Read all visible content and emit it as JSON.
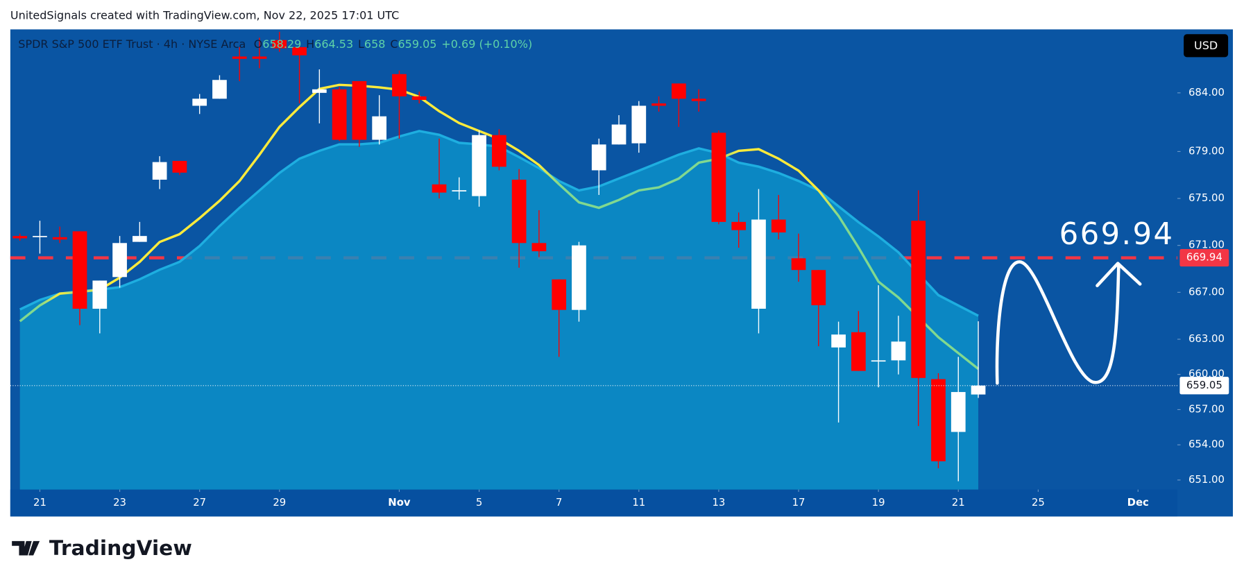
{
  "attribution": "UnitedSignals created with TradingView.com, Nov 22, 2025 17:01 UTC",
  "footer_brand": "TradingView",
  "chart_data": {
    "type": "candlestick",
    "title": "SPDR S&P 500 ETF Trust · 4h · NYSE Arca",
    "ohlc_legend": [
      {
        "label": "O",
        "value": 658.29
      },
      {
        "label": "H",
        "value": 664.53
      },
      {
        "label": "L",
        "value": 658.0
      },
      {
        "label": "C",
        "value": 659.05
      }
    ],
    "change": "+0.69 (+0.10%)",
    "currency": "USD",
    "x": [
      0,
      1,
      2,
      3,
      4,
      5,
      6,
      7,
      8,
      9,
      10,
      11,
      12,
      13,
      14,
      15,
      16,
      17,
      18,
      19,
      20,
      21,
      22,
      23,
      24,
      25,
      26,
      27,
      28,
      29,
      30,
      31,
      32,
      33,
      34,
      35,
      36,
      37,
      38,
      39,
      40,
      41,
      42,
      43,
      44,
      45,
      46,
      47,
      48
    ],
    "open": [
      671.8,
      671.7,
      671.7,
      672.2,
      665.6,
      668.3,
      671.3,
      676.6,
      678.2,
      682.9,
      683.5,
      687.1,
      687.1,
      688.5,
      687.9,
      684.0,
      684.3,
      685.0,
      680.0,
      685.6,
      683.7,
      676.2,
      675.6,
      675.2,
      680.4,
      676.6,
      671.2,
      668.1,
      665.5,
      677.4,
      679.6,
      679.7,
      683.1,
      684.8,
      683.5,
      680.6,
      673.0,
      665.6,
      673.2,
      669.9,
      668.9,
      662.3,
      663.6,
      661.1,
      661.2,
      673.1,
      659.6,
      655.1,
      658.29
    ],
    "high": [
      672.0,
      673.1,
      672.6,
      672.2,
      668.0,
      671.8,
      673.0,
      678.6,
      678.2,
      683.9,
      685.5,
      687.9,
      688.7,
      689.2,
      687.9,
      686.0,
      684.5,
      685.0,
      683.8,
      685.9,
      684.1,
      680.1,
      676.8,
      680.8,
      680.9,
      677.5,
      674.0,
      668.1,
      671.3,
      680.1,
      682.1,
      683.3,
      683.7,
      684.8,
      684.3,
      680.8,
      673.8,
      675.8,
      675.3,
      672.0,
      668.9,
      664.5,
      665.4,
      667.6,
      665.0,
      675.7,
      660.1,
      661.5,
      664.53
    ],
    "low": [
      671.4,
      670.3,
      671.2,
      664.2,
      663.5,
      667.4,
      671.3,
      675.8,
      677.0,
      682.2,
      683.5,
      685.0,
      686.1,
      687.5,
      683.1,
      681.4,
      679.9,
      679.4,
      679.6,
      680.1,
      683.1,
      675.0,
      674.9,
      674.3,
      677.4,
      669.1,
      670.0,
      661.5,
      664.5,
      675.3,
      679.6,
      678.9,
      682.4,
      681.1,
      682.4,
      672.8,
      670.8,
      663.5,
      671.5,
      667.9,
      662.4,
      655.9,
      660.3,
      658.9,
      660.0,
      655.6,
      652.0,
      650.9,
      658.0
    ],
    "close": [
      671.6,
      671.8,
      671.5,
      665.6,
      668.0,
      671.2,
      671.8,
      678.1,
      677.2,
      683.5,
      685.1,
      686.9,
      686.9,
      687.8,
      687.2,
      684.3,
      680.0,
      680.0,
      682.0,
      683.7,
      683.4,
      675.5,
      675.7,
      680.4,
      677.7,
      671.2,
      670.5,
      665.5,
      671.0,
      679.6,
      681.3,
      682.9,
      682.9,
      683.5,
      683.3,
      673.0,
      672.3,
      673.2,
      672.1,
      668.9,
      665.9,
      663.4,
      660.3,
      661.2,
      662.8,
      659.7,
      652.6,
      658.5,
      659.05
    ],
    "colors": {
      "up": "#ffffff",
      "down": "#ff0000"
    },
    "series": [
      {
        "color": "#ffeb3b",
        "below_color": "#81d98f",
        "values": [
          664.53,
          665.88,
          666.89,
          667.03,
          667.23,
          668.25,
          669.6,
          671.29,
          671.96,
          673.32,
          674.8,
          676.49,
          678.73,
          681.09,
          682.78,
          684.34,
          684.68,
          684.61,
          684.47,
          684.27,
          683.66,
          682.44,
          681.43,
          680.75,
          680.08,
          679.06,
          677.85,
          676.22,
          674.67,
          674.2,
          674.87,
          675.68,
          675.95,
          676.7,
          678.05,
          678.39,
          679.06,
          679.2,
          678.39,
          677.37,
          675.68,
          673.52,
          670.82,
          667.91,
          666.56,
          664.87,
          663.17,
          661.82,
          660.47
        ]
      },
      {
        "color": "#1eaee0",
        "fill": "#0b93cb",
        "values": [
          665.54,
          666.35,
          666.89,
          667.09,
          667.23,
          667.43,
          668.11,
          668.92,
          669.6,
          670.95,
          672.64,
          674.2,
          675.68,
          677.17,
          678.39,
          679.06,
          679.61,
          679.61,
          679.74,
          680.28,
          680.75,
          680.42,
          679.74,
          679.61,
          679.4,
          678.52,
          677.58,
          676.49,
          675.68,
          676.02,
          676.7,
          677.37,
          678.05,
          678.73,
          679.27,
          678.86,
          678.05,
          677.71,
          677.17,
          676.49,
          675.68,
          674.33,
          672.98,
          671.76,
          670.41,
          668.58,
          666.76,
          665.88,
          665.0
        ]
      }
    ],
    "target": {
      "value": 669.94,
      "color": "#f23645"
    },
    "last_price": 659.05,
    "xlim": [
      -0.48,
      57.97
    ],
    "xticks": [
      {
        "value": 1,
        "label": "21"
      },
      {
        "value": 5,
        "label": "23"
      },
      {
        "value": 9,
        "label": "27"
      },
      {
        "value": 13,
        "label": "29"
      },
      {
        "value": 19,
        "label": "Nov"
      },
      {
        "value": 23,
        "label": "5"
      },
      {
        "value": 27,
        "label": "7"
      },
      {
        "value": 31,
        "label": "11"
      },
      {
        "value": 35,
        "label": "13"
      },
      {
        "value": 39,
        "label": "17"
      },
      {
        "value": 43,
        "label": "19"
      },
      {
        "value": 47,
        "label": "21"
      },
      {
        "value": 51,
        "label": "25"
      },
      {
        "value": 56,
        "label": "Dec"
      }
    ],
    "ylim": [
      650.19,
      689.41
    ],
    "yticks": [
      {
        "value": 651,
        "label": "651.00"
      },
      {
        "value": 654,
        "label": "654.00"
      },
      {
        "value": 657,
        "label": "657.00"
      },
      {
        "value": 660,
        "label": "660.00"
      },
      {
        "value": 663,
        "label": "663.00"
      },
      {
        "value": 667,
        "label": "667.00"
      },
      {
        "value": 671,
        "label": "671.00"
      },
      {
        "value": 675,
        "label": "675.00"
      },
      {
        "value": 679,
        "label": "679.00"
      },
      {
        "value": 684,
        "label": "684.00"
      }
    ],
    "grid": false
  }
}
